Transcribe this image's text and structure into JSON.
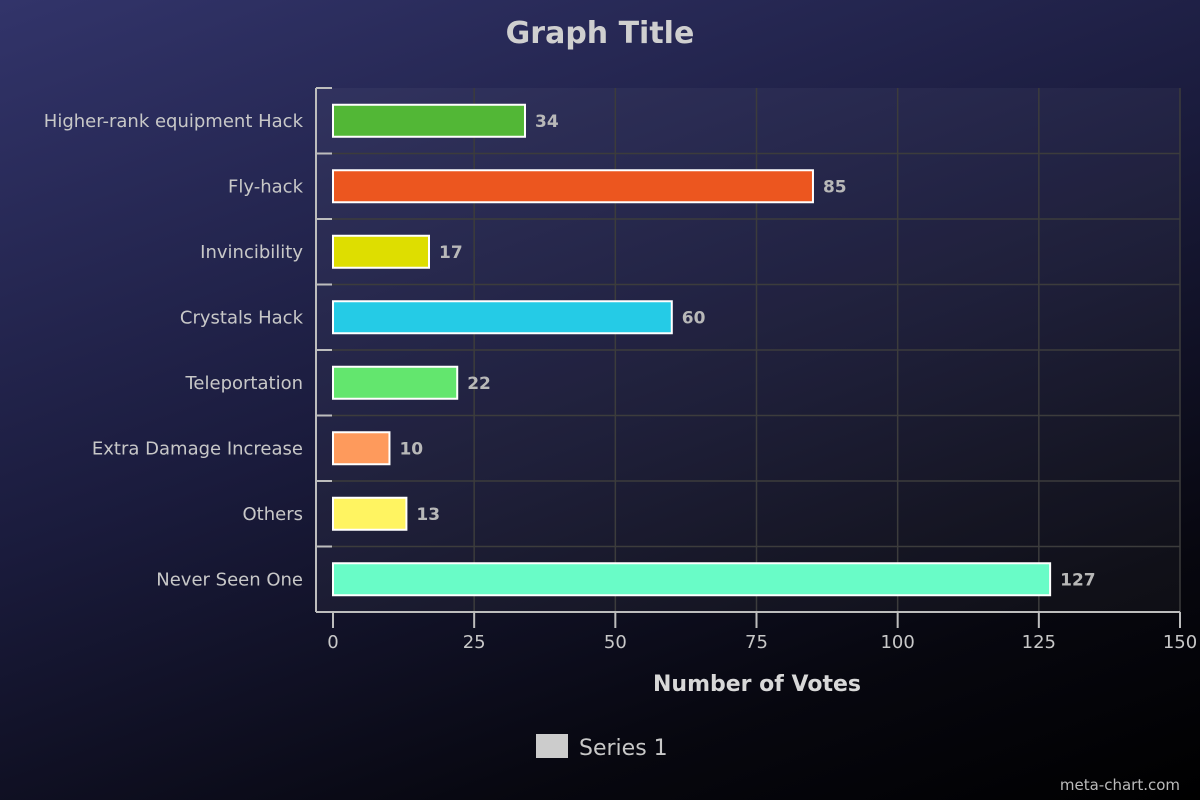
{
  "chart_data": {
    "type": "bar",
    "orientation": "horizontal",
    "title": "Graph Title",
    "xlabel": "Number of Votes",
    "ylabel": "",
    "categories": [
      "Higher-rank equipment Hack",
      "Fly-hack",
      "Invincibility",
      "Crystals Hack",
      "Teleportation",
      "Extra Damage Increase",
      "Others",
      "Never Seen One"
    ],
    "series": [
      {
        "name": "Series 1",
        "values": [
          34,
          85,
          17,
          60,
          22,
          10,
          13,
          127
        ],
        "colors": [
          "#52b736",
          "#ec561f",
          "#dede00",
          "#25cbe6",
          "#63e66e",
          "#fe9a5c",
          "#fff461",
          "#69fcc7"
        ]
      }
    ],
    "xlim": [
      0,
      150
    ],
    "xticks": [
      0,
      25,
      50,
      75,
      100,
      125,
      150
    ],
    "grid": true,
    "legend": {
      "placement": "bottom-center",
      "swatch_color": "#cccccc"
    },
    "credit": "meta-chart.com"
  }
}
